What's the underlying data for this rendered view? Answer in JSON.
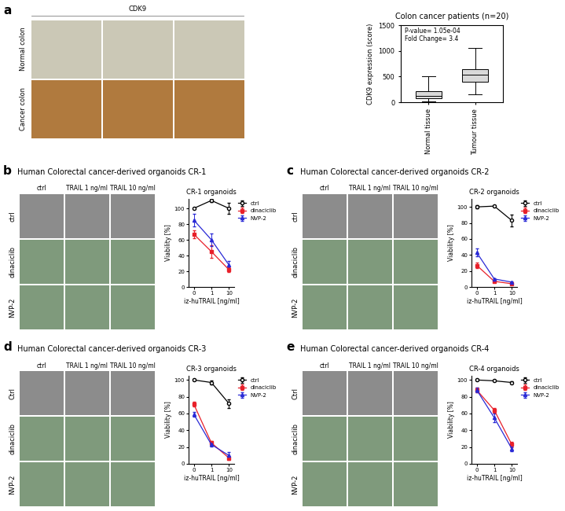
{
  "chart_data": [
    {
      "type": "box",
      "title": "Colon cancer patients (n=20)",
      "y_label": "CDK9 expression (score)",
      "categories": [
        "Normal tissue",
        "Tumour tissue"
      ],
      "boxes": [
        {
          "min": 10,
          "q1": 80,
          "median": 130,
          "q3": 220,
          "max": 500
        },
        {
          "min": 150,
          "q1": 400,
          "median": 530,
          "q3": 650,
          "max": 1060
        }
      ],
      "annotations": [
        "P-value= 1.05e-04",
        "Fold Change= 3.4"
      ],
      "ylim": [
        0,
        1500
      ],
      "yticks": [
        0,
        500,
        1000,
        1500
      ],
      "color": "#d9d9d9"
    },
    {
      "type": "line",
      "title": "CR-1 organoids",
      "x_label": "iz-huTRAIL [ng/ml]",
      "y_label": "Viability [%]",
      "categories": [
        "0",
        "1",
        "10"
      ],
      "series": [
        {
          "name": "ctrl",
          "color": "#000000",
          "marker": "circle",
          "values": [
            100,
            110,
            100
          ],
          "errors": [
            0,
            2,
            7
          ]
        },
        {
          "name": "dinaciclib",
          "color": "#e8202a",
          "marker": "square",
          "values": [
            67,
            45,
            22
          ],
          "errors": [
            5,
            8,
            3
          ]
        },
        {
          "name": "NVP-2",
          "color": "#2a2ad6",
          "marker": "triangle",
          "values": [
            85,
            60,
            28
          ],
          "errors": [
            8,
            8,
            5
          ]
        }
      ],
      "ylim": [
        0,
        112
      ],
      "yticks": [
        0,
        20,
        40,
        60,
        80,
        100
      ],
      "legend": "upper left"
    },
    {
      "type": "line",
      "title": "CR-2 organoids",
      "x_label": "iz-huTRAIL [ng/ml]",
      "y_label": "Viability [%]",
      "categories": [
        "0",
        "1",
        "10"
      ],
      "series": [
        {
          "name": "ctrl",
          "color": "#000000",
          "marker": "circle",
          "values": [
            100,
            101,
            83
          ],
          "errors": [
            2,
            1,
            7
          ]
        },
        {
          "name": "dinaciclib",
          "color": "#e8202a",
          "marker": "square",
          "values": [
            27,
            7,
            4
          ],
          "errors": [
            3,
            1,
            1
          ]
        },
        {
          "name": "NVP-2",
          "color": "#2a2ad6",
          "marker": "triangle",
          "values": [
            43,
            10,
            6
          ],
          "errors": [
            5,
            1,
            1
          ]
        }
      ],
      "ylim": [
        0,
        110
      ],
      "yticks": [
        0,
        20,
        40,
        60,
        80,
        100
      ],
      "legend": "upper left"
    },
    {
      "type": "line",
      "title": "CR-3 organoids",
      "x_label": "iz-huTRAIL [ng/ml]",
      "y_label": "Viability [%]",
      "categories": [
        "0",
        "1",
        "10"
      ],
      "series": [
        {
          "name": "ctrl",
          "color": "#000000",
          "marker": "circle",
          "values": [
            100,
            97,
            72
          ],
          "errors": [
            1,
            2,
            5
          ]
        },
        {
          "name": "dinaciclib",
          "color": "#e8202a",
          "marker": "square",
          "values": [
            71,
            25,
            7
          ],
          "errors": [
            3,
            2,
            2
          ]
        },
        {
          "name": "NVP-2",
          "color": "#2a2ad6",
          "marker": "triangle",
          "values": [
            59,
            23,
            10
          ],
          "errors": [
            3,
            2,
            4
          ]
        }
      ],
      "ylim": [
        0,
        105
      ],
      "yticks": [
        0,
        20,
        40,
        60,
        80,
        100
      ],
      "legend": "upper left"
    },
    {
      "type": "line",
      "title": "CR-4 organoids",
      "x_label": "iz-huTRAIL [ng/ml]",
      "y_label": "Viability [%]",
      "categories": [
        "0",
        "1",
        "10"
      ],
      "series": [
        {
          "name": "ctrl",
          "color": "#000000",
          "marker": "circle",
          "values": [
            100,
            99,
            97
          ],
          "errors": [
            1,
            1,
            1
          ]
        },
        {
          "name": "dinaciclib",
          "color": "#e8202a",
          "marker": "square",
          "values": [
            88,
            64,
            23
          ],
          "errors": [
            3,
            3,
            3
          ]
        },
        {
          "name": "NVP-2",
          "color": "#2a2ad6",
          "marker": "triangle",
          "values": [
            88,
            55,
            18
          ],
          "errors": [
            3,
            5,
            3
          ]
        }
      ],
      "ylim": [
        0,
        105
      ],
      "yticks": [
        0,
        20,
        40,
        60,
        80,
        100
      ],
      "legend": "upper left"
    }
  ],
  "image_panels": [
    {
      "label": "a",
      "header": "CDK9",
      "row_labels": [
        "Normal colon",
        "Cancer colon"
      ]
    },
    {
      "label": "b",
      "title": "Human Colorectal cancer-derived organoids CR-1",
      "column_labels": [
        "ctrl",
        "TRAIL 1 ng/ml",
        "TRAIL 10 ng/ml"
      ],
      "row_labels": [
        "ctrl",
        "dinaciclib",
        "NVP-2"
      ]
    },
    {
      "label": "c",
      "title": "Human Colorectal cancer-derived organoids CR-2",
      "column_labels": [
        "ctrl",
        "TRAIL 1 ng/ml",
        "TRAIL 10 ng/ml"
      ],
      "row_labels": [
        "ctrl",
        "dinaciclib",
        "NVP-2"
      ]
    },
    {
      "label": "d",
      "title": "Human Colorectal cancer-derived organoids CR-3",
      "column_labels": [
        "ctrl",
        "TRAIL 1 ng/ml",
        "TRAIL 10 ng/ml"
      ],
      "row_labels": [
        "Ctrl",
        "dinaciclib",
        "NVP-2"
      ]
    },
    {
      "label": "e",
      "title": "Human Colorectal cancer-derived organoids CR-4",
      "column_labels": [
        "ctrl",
        "TRAIL 1 ng/ml",
        "TRAIL 10 ng/ml"
      ],
      "row_labels": [
        "Ctrl",
        "dinaciclib",
        "NVP-2"
      ]
    }
  ]
}
